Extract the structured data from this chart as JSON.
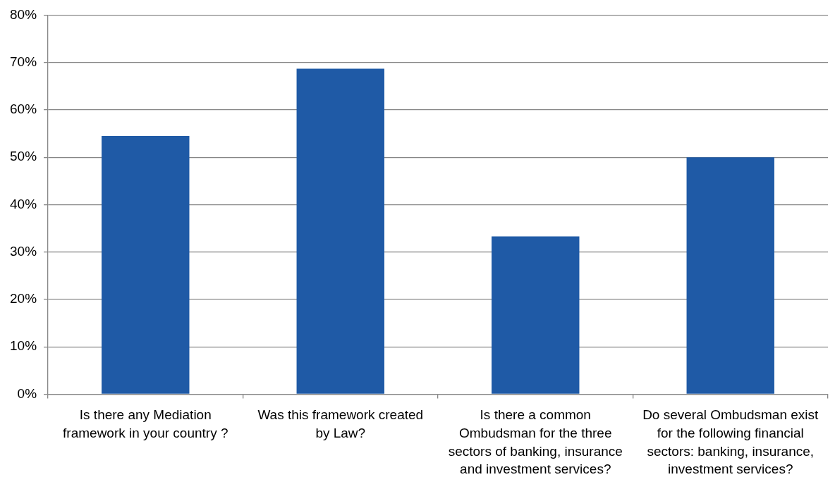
{
  "chart_data": {
    "type": "bar",
    "categories": [
      "Is there any Mediation framework in your country ?",
      "Was this framework created by Law?",
      "Is there a common Ombudsman for the three sectors of banking, insurance and investment services?",
      "Do several Ombudsman exist for the following financial sectors: banking, insurance, investment services?"
    ],
    "values": [
      54.5,
      68.7,
      33.3,
      50
    ],
    "color": "#1f5aa6",
    "ylim": [
      0,
      80
    ],
    "yticks": [
      {
        "value": 0,
        "label": "0%"
      },
      {
        "value": 10,
        "label": "10%"
      },
      {
        "value": 20,
        "label": "20%"
      },
      {
        "value": 30,
        "label": "30%"
      },
      {
        "value": 40,
        "label": "40%"
      },
      {
        "value": 50,
        "label": "50%"
      },
      {
        "value": 60,
        "label": "60%"
      },
      {
        "value": 70,
        "label": "70%"
      },
      {
        "value": 80,
        "label": "80%"
      }
    ],
    "grid": "y"
  }
}
